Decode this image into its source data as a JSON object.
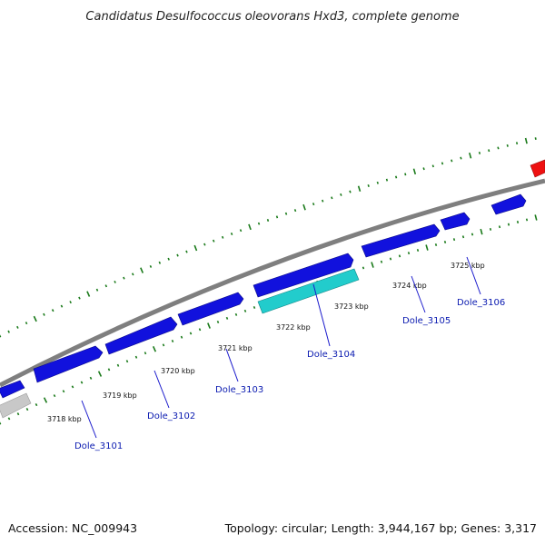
{
  "title": "Candidatus Desulfococcus oleovorans Hxd3, complete genome",
  "footer": {
    "accession": "Accession: NC_009943",
    "summary": "Topology: circular; Length: 3,944,167 bp; Genes: 3,317"
  },
  "colors": {
    "backbone": "#7f7f7f",
    "gene_forward": "#1111dd",
    "gene_selected": "#22cccc",
    "gene_other": "#ee1111",
    "gene_grey": "#c8c8c8",
    "tick": "#1a7a1a",
    "label_line": "#1a1acc",
    "gene_label": "#0a1ab0"
  },
  "kbp_labels": [
    "3718 kbp",
    "3719 kbp",
    "3720 kbp",
    "3721 kbp",
    "3722 kbp",
    "3723 kbp",
    "3724 kbp",
    "3725 kbp"
  ],
  "gene_labels": [
    "Dole_3101",
    "Dole_3102",
    "Dole_3103",
    "Dole_3104",
    "Dole_3105",
    "Dole_3106"
  ],
  "selected_gene": "Dole_3104"
}
